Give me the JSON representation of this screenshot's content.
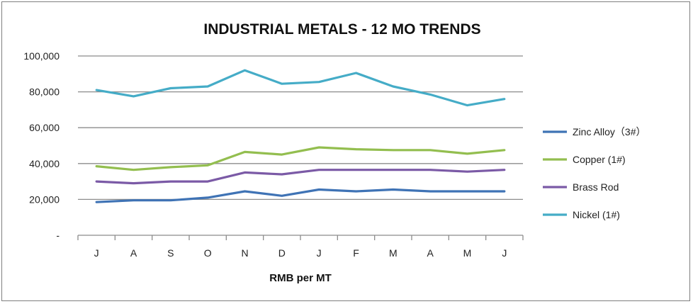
{
  "chart_data": {
    "type": "line",
    "title": "INDUSTRIAL METALS - 12 MO TRENDS",
    "xlabel": "RMB per MT",
    "ylabel": "",
    "categories": [
      "J",
      "A",
      "S",
      "O",
      "N",
      "D",
      "J",
      "F",
      "M",
      "A",
      "M",
      "J"
    ],
    "ylim": [
      0,
      100000
    ],
    "yticks": [
      {
        "value": 0,
        "label": "-"
      },
      {
        "value": 20000,
        "label": "20,000"
      },
      {
        "value": 40000,
        "label": "40,000"
      },
      {
        "value": 60000,
        "label": "60,000"
      },
      {
        "value": 80000,
        "label": "80,000"
      },
      {
        "value": 100000,
        "label": "100,000"
      }
    ],
    "grid": true,
    "legend": "right",
    "series": [
      {
        "name": "Zinc Alloy（3#）",
        "color": "#3F73B5",
        "values": [
          18500,
          19500,
          19500,
          21000,
          24500,
          22000,
          25500,
          24500,
          25500,
          24500,
          24500,
          24500
        ]
      },
      {
        "name": "Copper (1#)",
        "color": "#93BE4F",
        "values": [
          38500,
          36500,
          38000,
          39000,
          46500,
          45000,
          49000,
          48000,
          47500,
          47500,
          45500,
          47500
        ]
      },
      {
        "name": "Brass Rod",
        "color": "#7B5AA6",
        "values": [
          30000,
          29000,
          30000,
          30000,
          35000,
          34000,
          36500,
          36500,
          36500,
          36500,
          35500,
          36500
        ]
      },
      {
        "name": "Nickel (1#)",
        "color": "#45ACC7",
        "values": [
          81000,
          77500,
          82000,
          83000,
          92000,
          84500,
          85500,
          90500,
          83000,
          78500,
          72500,
          76000
        ]
      }
    ]
  }
}
